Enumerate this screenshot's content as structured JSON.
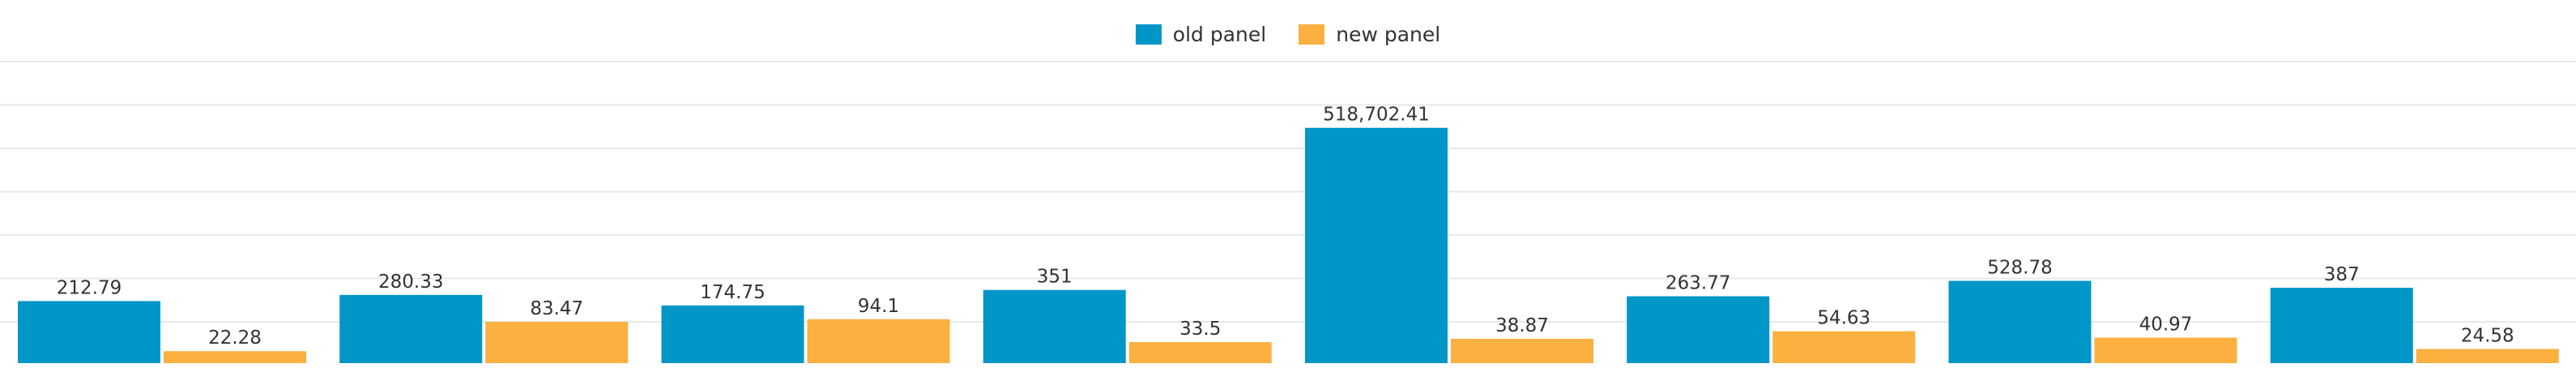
{
  "chart_data": {
    "type": "bar",
    "y_scale": "log",
    "grid": true,
    "legend_position": "top-center",
    "categories": [
      "",
      "",
      "",
      "",
      "",
      "",
      "",
      ""
    ],
    "series": [
      {
        "name": "old panel",
        "color": "#0096c8",
        "values": [
          212.79,
          280.33,
          174.75,
          351,
          518702.41,
          263.77,
          528.78,
          387
        ],
        "labels": [
          "212.79",
          "280.33",
          "174.75",
          "351",
          "518,702.41",
          "263.77",
          "528.78",
          "387"
        ]
      },
      {
        "name": "new panel",
        "color": "#fbb040",
        "values": [
          22.28,
          83.47,
          94.1,
          33.5,
          38.87,
          54.63,
          40.97,
          24.58
        ],
        "labels": [
          "22.28",
          "83.47",
          "94.1",
          "33.5",
          "38.87",
          "54.63",
          "40.97",
          "24.58"
        ]
      }
    ]
  }
}
